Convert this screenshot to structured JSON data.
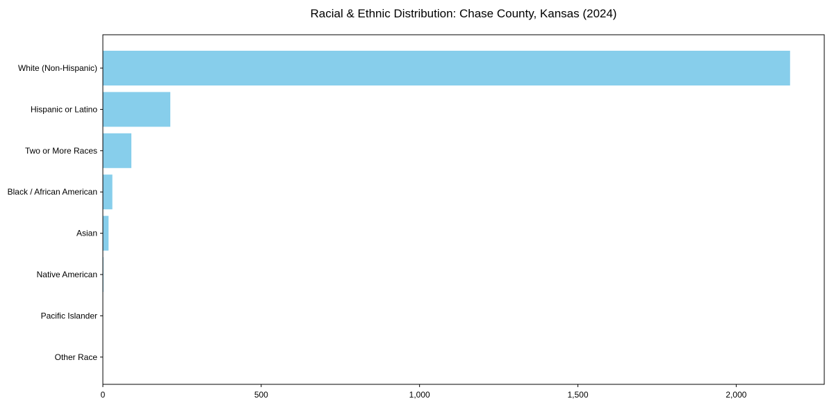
{
  "chart_data": {
    "type": "bar",
    "orientation": "horizontal",
    "title": "Racial & Ethnic Distribution: Chase County, Kansas (2024)",
    "categories": [
      "White (Non-Hispanic)",
      "Hispanic or Latino",
      "Two or More Races",
      "Black / African American",
      "Asian",
      "Native American",
      "Pacific Islander",
      "Other Race"
    ],
    "values": [
      2170,
      213,
      90,
      30,
      18,
      2,
      0,
      0
    ],
    "xlabel": "",
    "ylabel": "",
    "xlim": [
      0,
      2278
    ],
    "xtick_values": [
      0,
      500,
      1000,
      1500,
      2000
    ],
    "xtick_labels": [
      "0",
      "500",
      "1,000",
      "1,500",
      "2,000"
    ],
    "bar_color": "#87CEEB",
    "spine_color": "#000000",
    "text_color": "#000000",
    "background_color": "#ffffff",
    "grid": false,
    "legend": null
  }
}
